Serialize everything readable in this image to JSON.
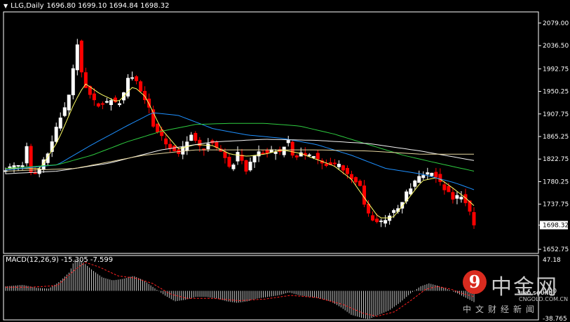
{
  "header": {
    "symbol": "LLG,Daily",
    "ohlc": "1696.80 1699.10 1694.84 1698.32",
    "dropdown_icon": "triangle-down-icon"
  },
  "price_pane": {
    "ylim": [
      1645,
      2100
    ],
    "ticks": [
      "2079.00",
      "2036.50",
      "1992.75",
      "1950.25",
      "1907.75",
      "1865.25",
      "1822.75",
      "1780.25",
      "1737.75",
      "1698.32",
      "1652.75"
    ],
    "tick_values": [
      2079.0,
      2036.5,
      1992.75,
      1950.25,
      1907.75,
      1865.25,
      1822.75,
      1780.25,
      1737.75,
      1698.32,
      1652.75
    ],
    "current_price": "1698.32"
  },
  "macd_pane": {
    "label": "MACD(12,26,9) -15.305 -7.599",
    "ylim": [
      -38.765,
      47.18
    ],
    "ticks": [
      "47.18",
      "0.00",
      "-38.765"
    ],
    "tick_values": [
      47.18,
      0,
      -38.765
    ]
  },
  "watermark": {
    "logo_char": "9",
    "name": "中金网",
    "tagline": "中文财经新闻",
    "url": "CNGOLD.COM.CN",
    "sino": "SINO SOUND"
  },
  "colors": {
    "up": "#ffffff",
    "down": "#ff0000",
    "up_candle": "#00ff00",
    "ma_yellow": "#ffff66",
    "ma_blue": "#1e90ff",
    "ma_green": "#2ecc40",
    "ma_white": "#f5f5f5",
    "ma_tan": "#e8d8a0",
    "macd_bar": "#c8c8c8",
    "macd_signal": "#ff2020",
    "grid": "#ffffff"
  },
  "chart_data": {
    "type": "candlestick",
    "symbol": "LLG",
    "timeframe": "Daily",
    "price_anchors": [
      [
        0,
        1803
      ],
      [
        10,
        1810
      ],
      [
        20,
        1812
      ],
      [
        24,
        1848
      ],
      [
        30,
        1790
      ],
      [
        38,
        1800
      ],
      [
        45,
        1825
      ],
      [
        52,
        1845
      ],
      [
        60,
        1890
      ],
      [
        68,
        1915
      ],
      [
        76,
        1960
      ],
      [
        82,
        2055
      ],
      [
        86,
        1995
      ],
      [
        92,
        1958
      ],
      [
        100,
        1935
      ],
      [
        108,
        1925
      ],
      [
        115,
        1925
      ],
      [
        122,
        1935
      ],
      [
        130,
        1925
      ],
      [
        136,
        1940
      ],
      [
        142,
        1980
      ],
      [
        150,
        1975
      ],
      [
        158,
        1945
      ],
      [
        166,
        1920
      ],
      [
        172,
        1880
      ],
      [
        180,
        1865
      ],
      [
        186,
        1852
      ],
      [
        194,
        1838
      ],
      [
        200,
        1830
      ],
      [
        208,
        1852
      ],
      [
        214,
        1870
      ],
      [
        220,
        1855
      ],
      [
        228,
        1840
      ],
      [
        236,
        1855
      ],
      [
        244,
        1842
      ],
      [
        252,
        1835
      ],
      [
        258,
        1808
      ],
      [
        264,
        1815
      ],
      [
        270,
        1838
      ],
      [
        278,
        1800
      ],
      [
        286,
        1825
      ],
      [
        294,
        1838
      ],
      [
        302,
        1830
      ],
      [
        310,
        1840
      ],
      [
        318,
        1835
      ],
      [
        326,
        1860
      ],
      [
        334,
        1820
      ],
      [
        340,
        1835
      ],
      [
        348,
        1830
      ],
      [
        356,
        1832
      ],
      [
        362,
        1820
      ],
      [
        368,
        1815
      ],
      [
        374,
        1810
      ],
      [
        380,
        1810
      ],
      [
        386,
        1815
      ],
      [
        392,
        1802
      ],
      [
        398,
        1790
      ],
      [
        404,
        1780
      ],
      [
        410,
        1772
      ],
      [
        416,
        1730
      ],
      [
        422,
        1715
      ],
      [
        428,
        1705
      ],
      [
        434,
        1705
      ],
      [
        440,
        1710
      ],
      [
        446,
        1720
      ],
      [
        452,
        1725
      ],
      [
        458,
        1735
      ],
      [
        462,
        1755
      ],
      [
        470,
        1770
      ],
      [
        478,
        1790
      ],
      [
        486,
        1795
      ],
      [
        494,
        1800
      ],
      [
        500,
        1785
      ],
      [
        506,
        1770
      ],
      [
        512,
        1760
      ],
      [
        518,
        1745
      ],
      [
        526,
        1758
      ],
      [
        532,
        1740
      ],
      [
        538,
        1718
      ],
      [
        542,
        1698
      ]
    ],
    "moving_averages": [
      {
        "key": "ma_yellow",
        "anchors": [
          [
            0,
            1805
          ],
          [
            40,
            1805
          ],
          [
            60,
            1855
          ],
          [
            80,
            1930
          ],
          [
            92,
            1965
          ],
          [
            110,
            1945
          ],
          [
            130,
            1930
          ],
          [
            148,
            1960
          ],
          [
            162,
            1940
          ],
          [
            180,
            1880
          ],
          [
            200,
            1842
          ],
          [
            220,
            1850
          ],
          [
            240,
            1848
          ],
          [
            260,
            1832
          ],
          [
            280,
            1828
          ],
          [
            300,
            1832
          ],
          [
            320,
            1840
          ],
          [
            340,
            1834
          ],
          [
            360,
            1822
          ],
          [
            380,
            1810
          ],
          [
            400,
            1785
          ],
          [
            416,
            1748
          ],
          [
            432,
            1712
          ],
          [
            448,
            1712
          ],
          [
            466,
            1748
          ],
          [
            482,
            1782
          ],
          [
            500,
            1788
          ],
          [
            516,
            1770
          ],
          [
            532,
            1750
          ],
          [
            542,
            1735
          ]
        ]
      },
      {
        "key": "ma_blue",
        "anchors": [
          [
            0,
            1802
          ],
          [
            60,
            1812
          ],
          [
            100,
            1850
          ],
          [
            140,
            1885
          ],
          [
            170,
            1910
          ],
          [
            200,
            1905
          ],
          [
            240,
            1880
          ],
          [
            280,
            1868
          ],
          [
            320,
            1862
          ],
          [
            360,
            1850
          ],
          [
            400,
            1830
          ],
          [
            440,
            1805
          ],
          [
            480,
            1795
          ],
          [
            520,
            1778
          ],
          [
            542,
            1765
          ]
        ]
      },
      {
        "key": "ma_green",
        "anchors": [
          [
            0,
            1805
          ],
          [
            60,
            1812
          ],
          [
            100,
            1830
          ],
          [
            140,
            1855
          ],
          [
            180,
            1875
          ],
          [
            220,
            1888
          ],
          [
            260,
            1890
          ],
          [
            300,
            1890
          ],
          [
            340,
            1885
          ],
          [
            380,
            1870
          ],
          [
            420,
            1850
          ],
          [
            460,
            1830
          ],
          [
            500,
            1815
          ],
          [
            542,
            1800
          ]
        ]
      },
      {
        "key": "ma_white",
        "anchors": [
          [
            0,
            1795
          ],
          [
            60,
            1800
          ],
          [
            120,
            1815
          ],
          [
            180,
            1840
          ],
          [
            240,
            1855
          ],
          [
            300,
            1860
          ],
          [
            360,
            1858
          ],
          [
            420,
            1852
          ],
          [
            480,
            1838
          ],
          [
            542,
            1820
          ]
        ]
      },
      {
        "key": "ma_tan",
        "anchors": [
          [
            0,
            1800
          ],
          [
            80,
            1805
          ],
          [
            160,
            1830
          ],
          [
            220,
            1840
          ],
          [
            280,
            1840
          ],
          [
            360,
            1840
          ],
          [
            420,
            1838
          ],
          [
            480,
            1832
          ],
          [
            542,
            1832
          ]
        ]
      }
    ],
    "macd": {
      "hist_anchors": [
        [
          0,
          6
        ],
        [
          20,
          8
        ],
        [
          36,
          4
        ],
        [
          50,
          3
        ],
        [
          62,
          12
        ],
        [
          74,
          25
        ],
        [
          80,
          42
        ],
        [
          90,
          38
        ],
        [
          100,
          28
        ],
        [
          112,
          18
        ],
        [
          124,
          14
        ],
        [
          136,
          16
        ],
        [
          148,
          20
        ],
        [
          160,
          14
        ],
        [
          172,
          4
        ],
        [
          184,
          -6
        ],
        [
          196,
          -14
        ],
        [
          208,
          -12
        ],
        [
          220,
          -8
        ],
        [
          232,
          -8
        ],
        [
          244,
          -10
        ],
        [
          256,
          -14
        ],
        [
          268,
          -16
        ],
        [
          280,
          -14
        ],
        [
          292,
          -10
        ],
        [
          304,
          -8
        ],
        [
          316,
          -6
        ],
        [
          328,
          -2
        ],
        [
          340,
          -6
        ],
        [
          352,
          -8
        ],
        [
          364,
          -10
        ],
        [
          376,
          -14
        ],
        [
          388,
          -22
        ],
        [
          400,
          -32
        ],
        [
          412,
          -36
        ],
        [
          420,
          -38
        ],
        [
          432,
          -32
        ],
        [
          444,
          -26
        ],
        [
          456,
          -16
        ],
        [
          468,
          -4
        ],
        [
          480,
          6
        ],
        [
          490,
          10
        ],
        [
          500,
          7
        ],
        [
          512,
          2
        ],
        [
          524,
          -4
        ],
        [
          534,
          -10
        ],
        [
          542,
          -15
        ]
      ],
      "signal_anchors": [
        [
          0,
          5
        ],
        [
          30,
          5
        ],
        [
          60,
          7
        ],
        [
          80,
          28
        ],
        [
          92,
          38
        ],
        [
          108,
          32
        ],
        [
          130,
          20
        ],
        [
          150,
          17
        ],
        [
          170,
          10
        ],
        [
          190,
          -4
        ],
        [
          210,
          -10
        ],
        [
          240,
          -10
        ],
        [
          270,
          -13
        ],
        [
          300,
          -11
        ],
        [
          330,
          -6
        ],
        [
          360,
          -9
        ],
        [
          390,
          -18
        ],
        [
          414,
          -30
        ],
        [
          430,
          -34
        ],
        [
          450,
          -28
        ],
        [
          470,
          -12
        ],
        [
          486,
          2
        ],
        [
          500,
          6
        ],
        [
          516,
          2
        ],
        [
          530,
          -4
        ],
        [
          542,
          -7.6
        ]
      ]
    }
  }
}
